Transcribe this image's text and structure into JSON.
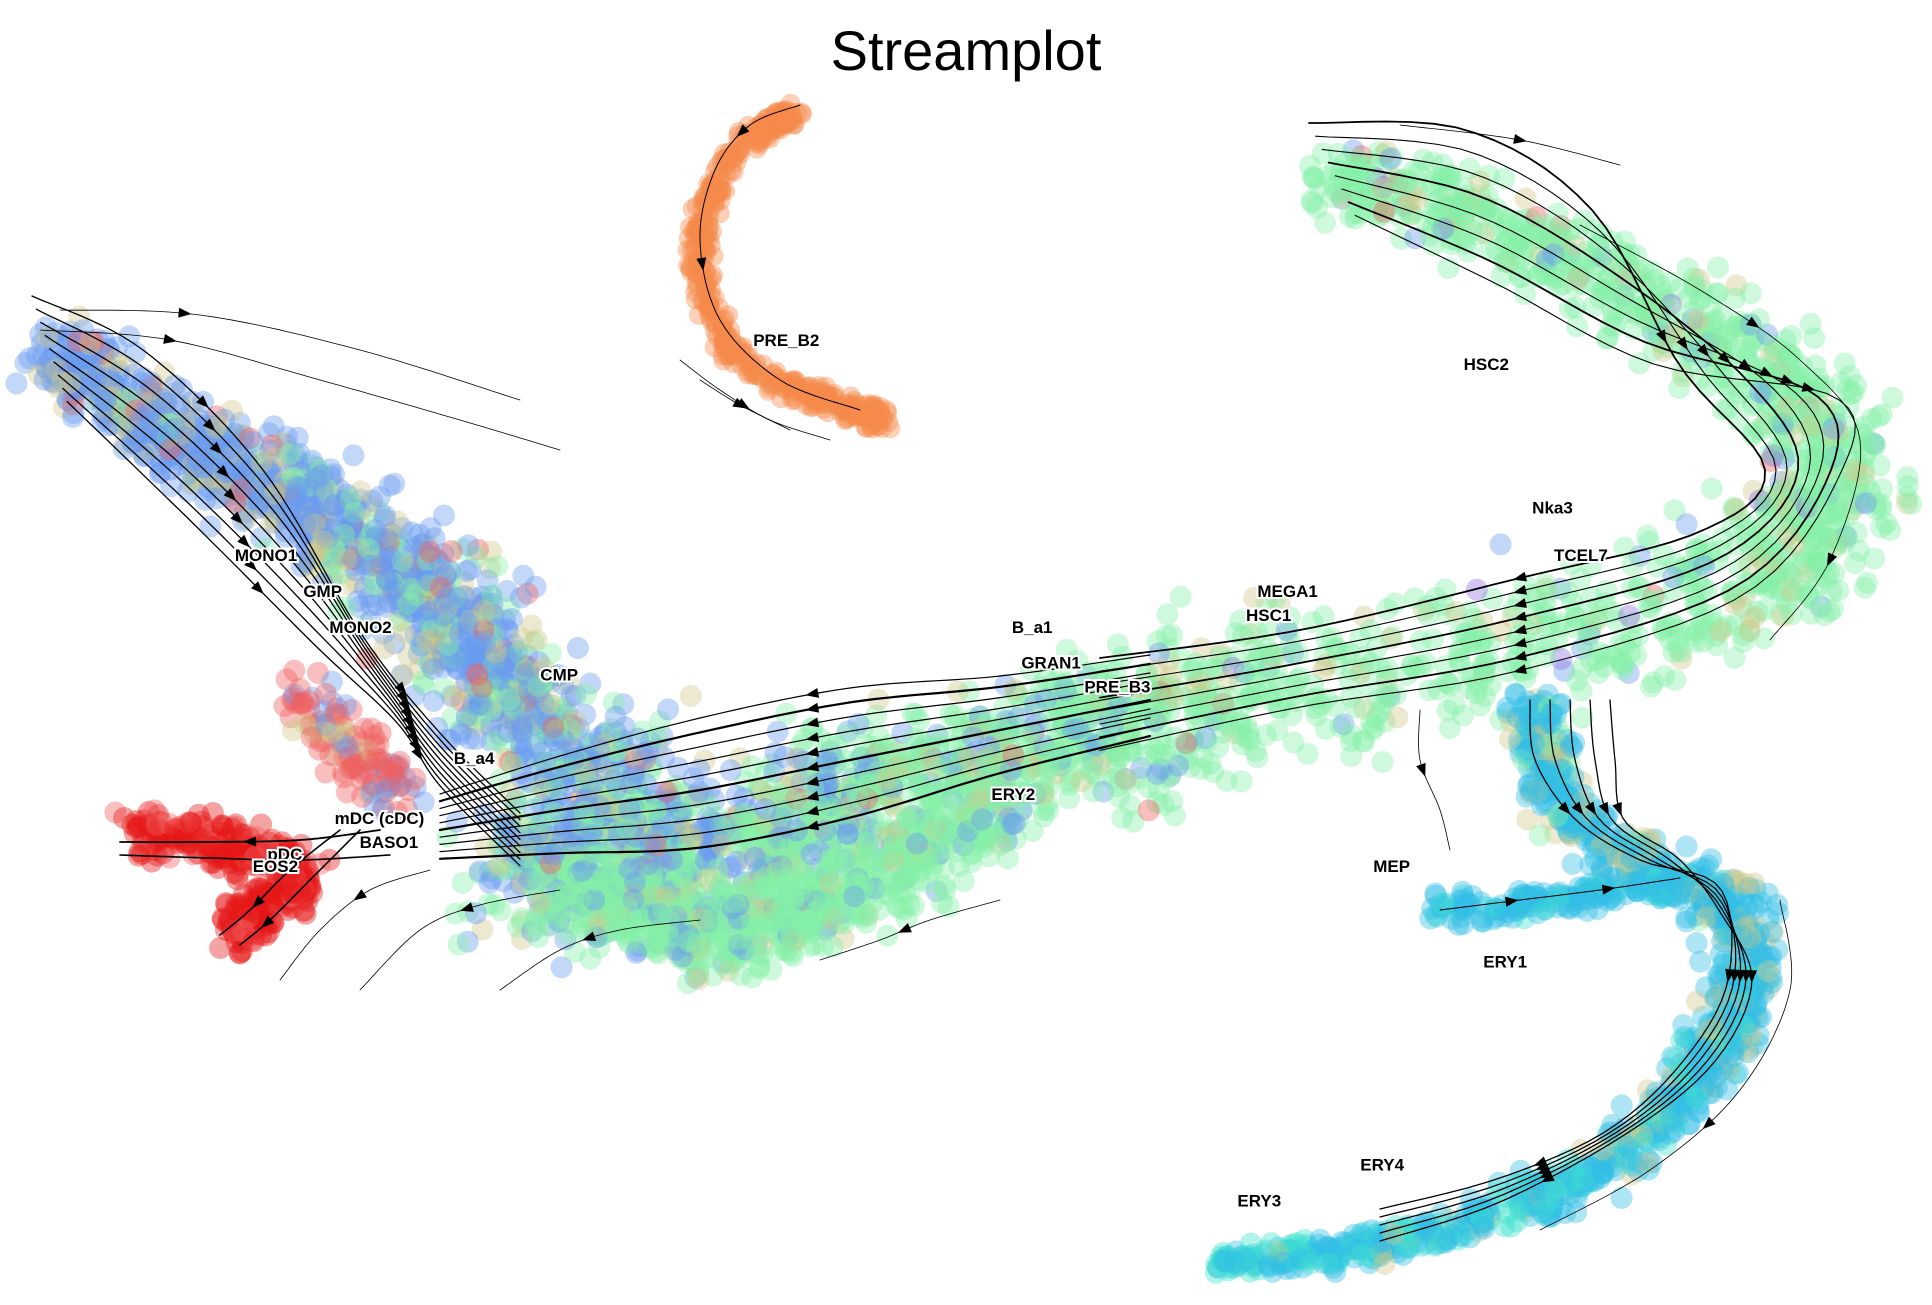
{
  "chart_data": {
    "type": "scatter",
    "title": "Streamplot",
    "xlabel": "",
    "ylabel": "",
    "axes_visible": false,
    "grid": false,
    "legend": "none",
    "overlay": "streamlines",
    "colors": {
      "hsc_branch": "#85f0a8",
      "myeloid": "#6a9cf0",
      "mixed": "#cfc98a",
      "granulocyte": "#f06060",
      "pdc_eos": "#e51616",
      "pre_b": "#f48a4a",
      "erythroid": "#33bde6",
      "ery_tail": "#3fe1cf",
      "purple": "#9070e0",
      "arrow": "#000000"
    },
    "clusters": [
      {
        "label": "PRE_B2",
        "x": 0.81,
        "y": 0.79,
        "color": "#f48a4a"
      },
      {
        "label": "HSC2",
        "x": 1.55,
        "y": 0.77,
        "color": "#85f0a8"
      },
      {
        "label": "Nka3",
        "x": 1.62,
        "y": 0.65,
        "color": "#85f0a8"
      },
      {
        "label": "TCEL7",
        "x": 1.65,
        "y": 0.61,
        "color": "#85f0a8"
      },
      {
        "label": "MEGA1",
        "x": 1.34,
        "y": 0.58,
        "color": "#85f0a8"
      },
      {
        "label": "HSC1",
        "x": 1.32,
        "y": 0.56,
        "color": "#85f0a8"
      },
      {
        "label": "B_a1",
        "x": 1.07,
        "y": 0.55,
        "color": "#85f0a8"
      },
      {
        "label": "GRAN1",
        "x": 1.09,
        "y": 0.52,
        "color": "#85f0a8"
      },
      {
        "label": "PRE_B3",
        "x": 1.16,
        "y": 0.5,
        "color": "#85f0a8"
      },
      {
        "label": "CMP",
        "x": 0.57,
        "y": 0.51,
        "color": "#6a9cf0"
      },
      {
        "label": "MONO1",
        "x": 0.26,
        "y": 0.61,
        "color": "#6a9cf0"
      },
      {
        "label": "GMP",
        "x": 0.32,
        "y": 0.58,
        "color": "#6a9cf0"
      },
      {
        "label": "MONO2",
        "x": 0.36,
        "y": 0.55,
        "color": "#cfc98a"
      },
      {
        "label": "B_a4",
        "x": 0.48,
        "y": 0.44,
        "color": "#6a9cf0"
      },
      {
        "label": "ERY2",
        "x": 1.05,
        "y": 0.41,
        "color": "#85f0a8"
      },
      {
        "label": "mDC (cDC)",
        "x": 0.38,
        "y": 0.39,
        "color": "#f06060"
      },
      {
        "label": "BASO1",
        "x": 0.39,
        "y": 0.37,
        "color": "#f06060"
      },
      {
        "label": "pDC",
        "x": 0.28,
        "y": 0.36,
        "color": "#e51616"
      },
      {
        "label": "EOS2",
        "x": 0.27,
        "y": 0.35,
        "color": "#e51616"
      },
      {
        "label": "MEP",
        "x": 1.45,
        "y": 0.35,
        "color": "#33bde6"
      },
      {
        "label": "ERY1",
        "x": 1.57,
        "y": 0.27,
        "color": "#33bde6"
      },
      {
        "label": "ERY4",
        "x": 1.44,
        "y": 0.1,
        "color": "#33bde6"
      },
      {
        "label": "ERY3",
        "x": 1.31,
        "y": 0.07,
        "color": "#3fe1cf"
      }
    ]
  }
}
